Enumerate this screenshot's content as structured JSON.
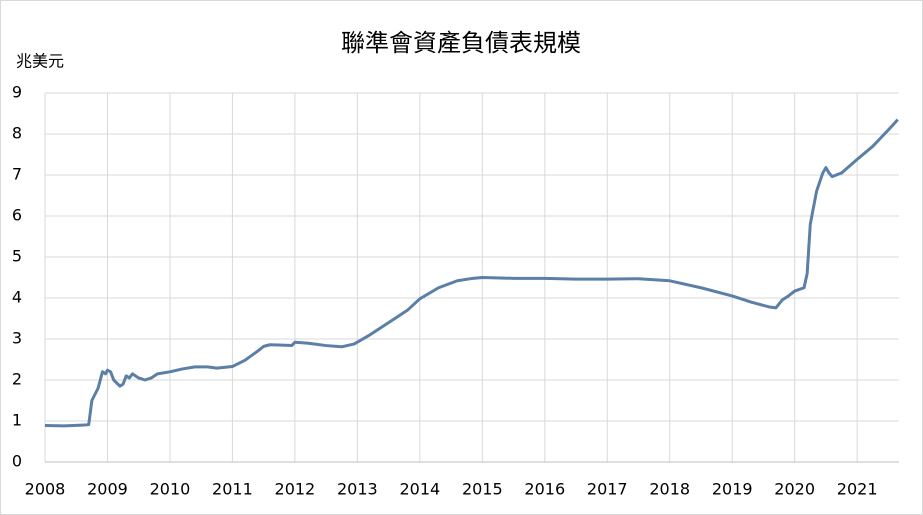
{
  "chart_data": {
    "type": "line",
    "title": "聯準會資產負債表規模",
    "y_label": "兆美元",
    "x": [
      2008.0,
      2008.3,
      2008.6,
      2008.7,
      2008.75,
      2008.85,
      2008.92,
      2008.97,
      2009.0,
      2009.05,
      2009.1,
      2009.2,
      2009.25,
      2009.3,
      2009.35,
      2009.4,
      2009.5,
      2009.6,
      2009.7,
      2009.8,
      2010.0,
      2010.2,
      2010.4,
      2010.6,
      2010.75,
      2011.0,
      2011.2,
      2011.4,
      2011.5,
      2011.6,
      2011.8,
      2011.95,
      2012.0,
      2012.2,
      2012.5,
      2012.75,
      2012.95,
      2013.2,
      2013.5,
      2013.8,
      2014.0,
      2014.3,
      2014.6,
      2014.85,
      2015.0,
      2015.5,
      2016.0,
      2016.5,
      2017.0,
      2017.5,
      2018.0,
      2018.5,
      2019.0,
      2019.3,
      2019.6,
      2019.7,
      2019.8,
      2019.9,
      2020.0,
      2020.15,
      2020.2,
      2020.25,
      2020.35,
      2020.45,
      2020.5,
      2020.55,
      2020.6,
      2020.75,
      2021.0,
      2021.25,
      2021.5,
      2021.65
    ],
    "series": [
      {
        "color": "#5b7fa6",
        "values": [
          0.89,
          0.88,
          0.9,
          0.91,
          1.5,
          1.8,
          2.2,
          2.15,
          2.24,
          2.2,
          2.0,
          1.85,
          1.9,
          2.1,
          2.05,
          2.15,
          2.05,
          2.0,
          2.05,
          2.15,
          2.2,
          2.27,
          2.32,
          2.32,
          2.29,
          2.33,
          2.48,
          2.7,
          2.82,
          2.86,
          2.85,
          2.84,
          2.92,
          2.9,
          2.84,
          2.81,
          2.88,
          3.1,
          3.4,
          3.7,
          3.98,
          4.25,
          4.42,
          4.48,
          4.5,
          4.48,
          4.48,
          4.46,
          4.46,
          4.47,
          4.42,
          4.25,
          4.05,
          3.9,
          3.78,
          3.76,
          3.95,
          4.05,
          4.17,
          4.25,
          4.6,
          5.8,
          6.6,
          7.05,
          7.18,
          7.05,
          6.96,
          7.05,
          7.38,
          7.7,
          8.1,
          8.35
        ]
      }
    ],
    "xlim": [
      2008,
      2021.67
    ],
    "xticks": [
      2008,
      2009,
      2010,
      2011,
      2012,
      2013,
      2014,
      2015,
      2016,
      2017,
      2018,
      2019,
      2020,
      2021
    ],
    "ylim": [
      0,
      9
    ],
    "yticks": [
      0,
      1,
      2,
      3,
      4,
      5,
      6,
      7,
      8,
      9
    ],
    "grid": true
  }
}
